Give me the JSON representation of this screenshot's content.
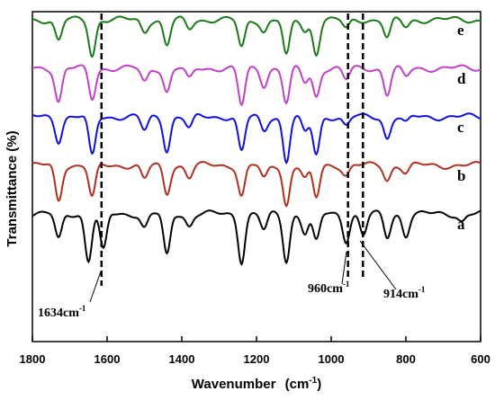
{
  "chart_data": {
    "type": "line",
    "xlabel": "Wavenumber",
    "xlabel_unit": "(cm",
    "xlabel_unit_sup": "-1",
    "xlabel_unit_close": ")",
    "ylabel": "Transmittance (%)",
    "xlim": [
      1800,
      600
    ],
    "x_reversed": true,
    "xticks": [
      1800,
      1600,
      1400,
      1200,
      1000,
      800,
      600
    ],
    "xtick_labels": [
      "1800",
      "1600",
      "1400",
      "1200",
      "1000",
      "800",
      "600"
    ],
    "grid": false,
    "legend": "none",
    "series": [
      {
        "label": "e",
        "color": "#1a7a1a",
        "offset": 0.0,
        "peaks": [
          [
            1730,
            0.45
          ],
          [
            1640,
            0.75
          ],
          [
            1500,
            0.25
          ],
          [
            1440,
            0.55
          ],
          [
            1380,
            0.2
          ],
          [
            1240,
            0.6
          ],
          [
            1180,
            0.25
          ],
          [
            1120,
            0.8
          ],
          [
            1070,
            0.25
          ],
          [
            1040,
            0.7
          ],
          [
            960,
            0.2
          ],
          [
            850,
            0.4
          ],
          [
            800,
            0.15
          ]
        ]
      },
      {
        "label": "d",
        "color": "#c040c8",
        "offset": 1.0,
        "peaks": [
          [
            1730,
            0.7
          ],
          [
            1640,
            0.65
          ],
          [
            1500,
            0.3
          ],
          [
            1440,
            0.5
          ],
          [
            1380,
            0.25
          ],
          [
            1240,
            0.8
          ],
          [
            1180,
            0.35
          ],
          [
            1120,
            0.75
          ],
          [
            1070,
            0.3
          ],
          [
            1040,
            0.6
          ],
          [
            960,
            0.25
          ],
          [
            850,
            0.55
          ],
          [
            800,
            0.2
          ]
        ]
      },
      {
        "label": "c",
        "color": "#1010e0",
        "offset": 2.0,
        "peaks": [
          [
            1730,
            0.5
          ],
          [
            1640,
            0.85
          ],
          [
            1500,
            0.3
          ],
          [
            1440,
            0.7
          ],
          [
            1380,
            0.25
          ],
          [
            1240,
            0.75
          ],
          [
            1180,
            0.3
          ],
          [
            1120,
            0.95
          ],
          [
            1070,
            0.35
          ],
          [
            1040,
            0.8
          ],
          [
            960,
            0.2
          ],
          [
            850,
            0.45
          ],
          [
            800,
            0.15
          ]
        ]
      },
      {
        "label": "b",
        "color": "#b03020",
        "offset": 3.0,
        "peaks": [
          [
            1730,
            0.75
          ],
          [
            1640,
            0.7
          ],
          [
            1500,
            0.3
          ],
          [
            1440,
            0.6
          ],
          [
            1380,
            0.25
          ],
          [
            1240,
            0.65
          ],
          [
            1180,
            0.3
          ],
          [
            1120,
            0.85
          ],
          [
            1070,
            0.3
          ],
          [
            1040,
            0.7
          ],
          [
            960,
            0.2
          ],
          [
            850,
            0.3
          ],
          [
            800,
            0.15
          ]
        ]
      },
      {
        "label": "a",
        "color": "#000000",
        "offset": 4.0,
        "peaks": [
          [
            1730,
            0.55
          ],
          [
            1650,
            1.0
          ],
          [
            1610,
            0.8
          ],
          [
            1500,
            0.3
          ],
          [
            1440,
            0.9
          ],
          [
            1380,
            0.25
          ],
          [
            1240,
            1.0
          ],
          [
            1180,
            0.35
          ],
          [
            1120,
            1.0
          ],
          [
            1070,
            0.4
          ],
          [
            1040,
            0.6
          ],
          [
            960,
            0.55
          ],
          [
            914,
            0.45
          ],
          [
            850,
            0.5
          ],
          [
            800,
            0.45
          ],
          [
            650,
            0.15
          ]
        ]
      }
    ],
    "annotations": [
      {
        "text": "1634cm",
        "sup": "-1",
        "x": 1615
      },
      {
        "text": "960cm",
        "sup": "-1",
        "x": 955
      },
      {
        "text": "914cm",
        "sup": "-1",
        "x": 915
      }
    ]
  }
}
